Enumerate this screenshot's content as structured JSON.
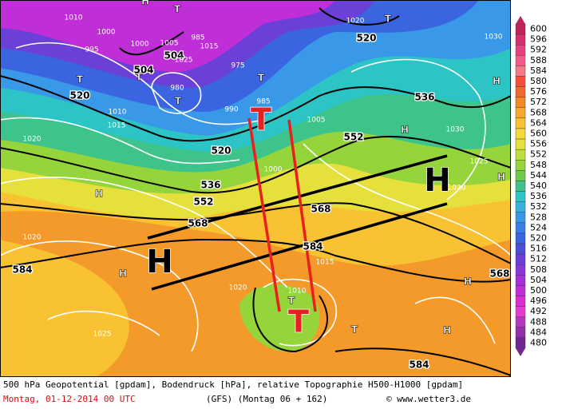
{
  "legend": {
    "scale": [
      600,
      596,
      592,
      588,
      584,
      580,
      576,
      572,
      568,
      564,
      560,
      556,
      552,
      548,
      544,
      540,
      536,
      532,
      528,
      524,
      520,
      516,
      512,
      508,
      504,
      500,
      496,
      492,
      488,
      484,
      480
    ],
    "colors": [
      "#c0245a",
      "#d8306e",
      "#e8407e",
      "#f25a8a",
      "#f67a86",
      "#f4503a",
      "#f06a2c",
      "#f48a26",
      "#f8a82c",
      "#f8c232",
      "#f6d83a",
      "#e4e03c",
      "#bede3c",
      "#96d43c",
      "#6ccc48",
      "#3ec48a",
      "#2cc4c4",
      "#38b0e0",
      "#3a98e8",
      "#3a7ee8",
      "#3a64e0",
      "#4a4ed8",
      "#6a40d8",
      "#8a38d8",
      "#a630d8",
      "#c02ed8",
      "#d82ed0",
      "#e43cd0",
      "#b438c0",
      "#9030a8",
      "#702890"
    ]
  },
  "map": {
    "geopotential_labels": [
      "520",
      "504",
      "504",
      "520",
      "536",
      "552",
      "520",
      "536",
      "552",
      "568",
      "568",
      "584",
      "584",
      "568",
      "584"
    ],
    "pressure_labels": [
      "1010",
      "1000",
      "1000",
      "1005",
      "995",
      "985",
      "980",
      "975",
      "990",
      "985",
      "1010",
      "1015",
      "1005",
      "1030",
      "1020",
      "1020",
      "1025",
      "1020",
      "1015",
      "1010",
      "1025",
      "1030",
      "1025",
      "1020",
      "1015",
      "1000",
      "1020"
    ],
    "highs": [
      "H",
      "H",
      "H",
      "H",
      "H",
      "H",
      "H",
      "H"
    ],
    "lows": [
      "T",
      "T",
      "T",
      "T",
      "T",
      "T",
      "T",
      "T"
    ],
    "big_highs": [
      "H",
      "H"
    ],
    "big_lows": [
      "T",
      "T"
    ]
  },
  "footer": {
    "line1": "500 hPa Geopotential [gpdam], Bodendruck [hPa], relative Topographie H500-H1000 [gpdam]",
    "date": "Montag, 01-12-2014  00 UTC",
    "model": "(GFS)  (Montag 06 + 162)",
    "copyright": "© www.wetter3.de"
  }
}
